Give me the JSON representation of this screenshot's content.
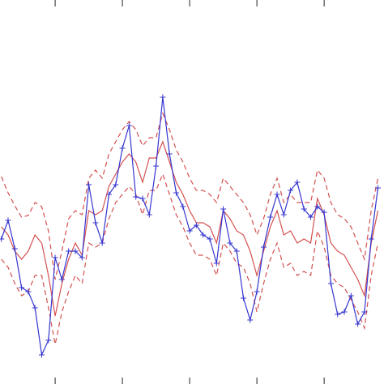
{
  "chart_data": {
    "type": "line",
    "x": [
      2,
      3,
      4,
      5,
      6,
      7,
      8,
      9,
      10,
      11,
      12,
      13,
      14,
      15,
      16,
      17,
      18,
      19,
      20,
      21,
      22,
      23,
      24,
      25,
      26,
      27,
      28,
      29,
      30,
      31,
      32,
      33,
      34,
      35,
      36,
      37,
      38,
      39,
      40,
      41,
      42,
      43,
      44,
      45,
      46,
      47,
      48,
      49,
      50,
      51,
      52,
      53,
      54,
      55,
      56,
      57,
      58
    ],
    "xlim": [
      1.8,
      58.9
    ],
    "xticks": [
      10,
      20,
      30,
      40,
      50
    ],
    "ylim": [
      0,
      474
    ],
    "series": [
      {
        "color": "#d45050",
        "style": "dashed",
        "values": [
          256,
          236,
          220,
          206,
          208,
          224,
          219,
          189,
          129,
          164,
          204,
          214,
          209,
          254,
          264,
          254,
          284,
          299,
          314,
          324,
          314,
          294,
          304,
          304,
          334,
          314,
          289,
          274,
          254,
          239,
          239,
          234,
          224,
          254,
          244,
          234,
          224,
          209,
          184,
          204,
          234,
          254,
          224,
          234,
          224,
          224,
          224,
          264,
          254,
          224,
          209,
          204,
          194,
          174,
          154,
          214,
          254
        ]
      },
      {
        "color": "#d45050",
        "style": "dashed",
        "values": [
          154,
          144,
          124,
          109,
          114,
          134,
          134,
          94,
          49,
          89,
          114,
          134,
          124,
          174,
          169,
          174,
          204,
          224,
          234,
          244,
          234,
          209,
          239,
          239,
          259,
          234,
          209,
          194,
          174,
          159,
          159,
          154,
          134,
          174,
          164,
          149,
          144,
          124,
          89,
          124,
          154,
          174,
          144,
          149,
          134,
          139,
          134,
          189,
          169,
          134,
          124,
          119,
          104,
          89,
          69,
          134,
          174
        ]
      },
      {
        "color": "#d45050",
        "style": "solid",
        "values": [
          194,
          184,
          164,
          154,
          164,
          184,
          174,
          134,
          84,
          124,
          154,
          174,
          159,
          214,
          209,
          214,
          244,
          259,
          274,
          284,
          274,
          249,
          279,
          279,
          299,
          274,
          249,
          234,
          214,
          199,
          199,
          194,
          174,
          214,
          204,
          189,
          184,
          164,
          134,
          164,
          194,
          214,
          184,
          189,
          174,
          179,
          174,
          229,
          209,
          174,
          164,
          159,
          144,
          129,
          109,
          174,
          214
        ]
      },
      {
        "color": "#3535d0",
        "style": "solid",
        "marker": "+",
        "values": [
          179,
          202,
          167,
          119,
          114,
          94,
          36,
          54,
          156,
          129,
          164,
          164,
          156,
          246,
          199,
          174,
          234,
          246,
          291,
          319,
          231,
          229,
          209,
          269,
          354,
          284,
          236,
          219,
          189,
          196,
          184,
          179,
          149,
          216,
          174,
          164,
          106,
          79,
          114,
          169,
          206,
          234,
          209,
          239,
          249,
          216,
          206,
          219,
          212,
          124,
          86,
          89,
          109,
          74,
          89,
          179,
          242
        ]
      }
    ]
  }
}
